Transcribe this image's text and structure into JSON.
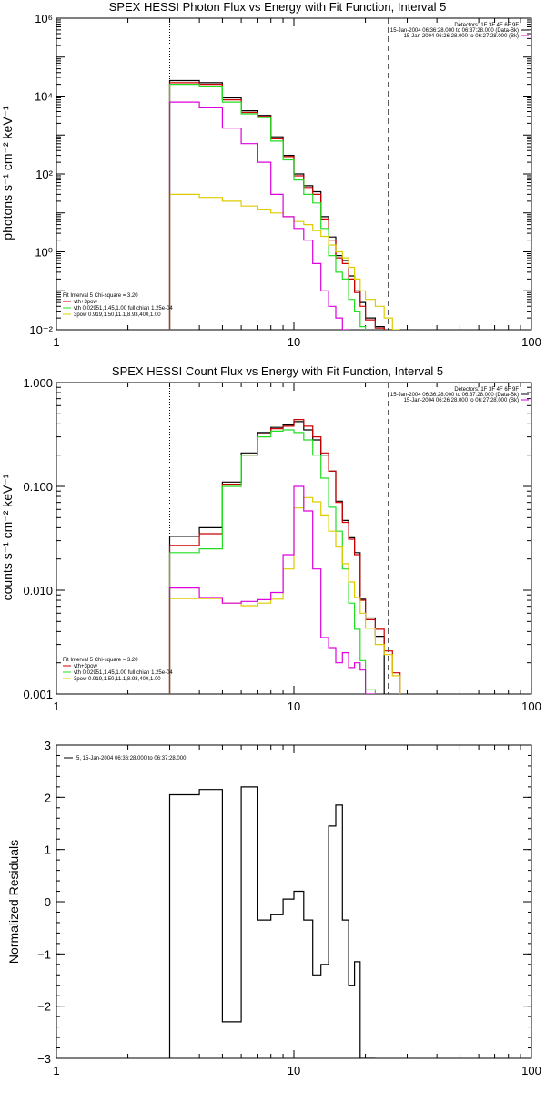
{
  "colors": {
    "black": "#000000",
    "red": "#cc0000",
    "green": "#22dd22",
    "magenta": "#dd00dd",
    "yellow": "#ddcc00"
  },
  "chart_data": [
    {
      "type": "line",
      "step": true,
      "title": "SPEX HESSI Photon Flux vs Energy with Fit Function, Interval 5",
      "xlabel": "",
      "ylabel": "photons s⁻¹ cm⁻² keV⁻¹",
      "xscale": "log",
      "yscale": "log",
      "xlim": [
        1,
        100
      ],
      "ylim": [
        0.01,
        1000000
      ],
      "xtick_labels": [
        "1",
        "10",
        "100"
      ],
      "ytick_labels": [
        "10⁻²",
        "10⁰",
        "10²",
        "10⁴",
        "10⁶"
      ],
      "yticks_exp": [
        -2,
        0,
        2,
        4,
        6
      ],
      "vlines": [
        {
          "x": 3,
          "style": "dotted"
        },
        {
          "x": 25,
          "style": "dashed"
        }
      ],
      "header": [
        "Detectors: 1F 3F 4F 6F 9F",
        "15-Jan-2004 06:36:28.000 to 06:37:28.000 (Data-Bk)",
        "15-Jan-2004 06:26:28.000 to 06:27:28.000 (Bk)"
      ],
      "fit_text": [
        "Fit Interval 5   Chi-square = 3.20",
        "vth+3pow",
        "vth 0.02951,1.45,1.00  full chian 1.25e-04",
        "3pow 0.919,1.50,11.1,8.93,400,1.00"
      ],
      "bin_edges": [
        3,
        4,
        5,
        6,
        7,
        8,
        9,
        10,
        11,
        12,
        13,
        14,
        15,
        16,
        17,
        18,
        19,
        20,
        22,
        24,
        26,
        28,
        30
      ],
      "series": [
        {
          "name": "data",
          "color": "black",
          "values": [
            25000,
            22000,
            9000,
            4200,
            3200,
            900,
            300,
            100,
            50,
            35,
            8,
            2.4,
            0.8,
            0.6,
            0.24,
            0.1,
            0.05,
            0.02,
            0.012,
            null,
            null,
            null
          ]
        },
        {
          "name": "vth+3pow",
          "color": "red",
          "values": [
            22000,
            20000,
            8000,
            3800,
            3000,
            800,
            280,
            90,
            45,
            30,
            7,
            2,
            0.7,
            0.5,
            0.2,
            0.09,
            0.04,
            0.018,
            0.011,
            null,
            null,
            null
          ]
        },
        {
          "name": "vth",
          "color": "green",
          "values": [
            20000,
            18000,
            7000,
            3500,
            2800,
            700,
            230,
            70,
            30,
            18,
            4,
            0.8,
            0.3,
            0.2,
            0.06,
            0.03,
            0.012,
            null,
            null,
            null,
            null,
            null
          ]
        },
        {
          "name": "3pow",
          "color": "yellow",
          "values": [
            30,
            25,
            20,
            15,
            12,
            10,
            8,
            6,
            5,
            3.5,
            2.5,
            1.5,
            1,
            0.7,
            0.4,
            0.2,
            0.1,
            0.06,
            0.04,
            0.02,
            0.01,
            null
          ]
        },
        {
          "name": "bk",
          "color": "magenta",
          "values": [
            7000,
            5000,
            1500,
            600,
            200,
            30,
            8,
            4,
            2,
            0.5,
            0.1,
            0.04,
            0.02,
            0.01,
            null,
            null,
            null,
            null,
            null,
            null,
            null,
            null
          ]
        }
      ]
    },
    {
      "type": "line",
      "step": true,
      "title": "SPEX HESSI Count Flux vs Energy with Fit Function, Interval 5",
      "xlabel": "",
      "ylabel": "counts s⁻¹ cm⁻² keV⁻¹",
      "xscale": "log",
      "yscale": "log",
      "xlim": [
        1,
        100
      ],
      "ylim": [
        0.001,
        1.0
      ],
      "xtick_labels": [
        "1",
        "10",
        "100"
      ],
      "ytick_labels": [
        "0.001",
        "0.010",
        "0.100",
        "1.000"
      ],
      "yticks": [
        0.001,
        0.01,
        0.1,
        1.0
      ],
      "vlines": [
        {
          "x": 3,
          "style": "dotted"
        },
        {
          "x": 25,
          "style": "dashed"
        }
      ],
      "header": [
        "Detectors: 1F 3F 4F 6F 9F",
        "15-Jan-2004 06:36:28.000 to 06:37:28.000 (Data-Bk)",
        "15-Jan-2004 06:26:28.000 to 06:27:28.000 (Bk)"
      ],
      "fit_text": [
        "Fit Interval 5   Chi-square = 3.20",
        "vth+3pow",
        "vth 0.02951,1.45,1.00  full chian 1.25e-04",
        "3pow 0.919,1.50,11.1,8.93,400,1.00"
      ],
      "bin_edges": [
        3,
        4,
        5,
        6,
        7,
        8,
        9,
        10,
        11,
        12,
        13,
        14,
        15,
        16,
        17,
        18,
        19,
        20,
        22,
        24,
        26,
        28,
        30
      ],
      "series": [
        {
          "name": "data",
          "color": "black",
          "values": [
            0.033,
            0.04,
            0.11,
            0.21,
            0.33,
            0.37,
            0.39,
            0.42,
            0.35,
            0.28,
            0.2,
            0.14,
            0.072,
            0.047,
            0.032,
            0.023,
            0.0082,
            0.0054,
            0.0036,
            null,
            null,
            null
          ]
        },
        {
          "name": "vth+3pow",
          "color": "red",
          "values": [
            0.027,
            0.035,
            0.105,
            0.2,
            0.32,
            0.36,
            0.38,
            0.44,
            0.38,
            0.3,
            0.21,
            0.14,
            0.07,
            0.045,
            0.031,
            0.022,
            0.008,
            0.0052,
            0.0042,
            0.0026,
            0.0016,
            null
          ]
        },
        {
          "name": "vth",
          "color": "green",
          "values": [
            0.023,
            0.025,
            0.1,
            0.2,
            0.3,
            0.34,
            0.35,
            0.33,
            0.28,
            0.2,
            0.12,
            0.063,
            0.037,
            0.016,
            0.0075,
            0.0042,
            0.0021,
            0.0011,
            null,
            null,
            null,
            null
          ]
        },
        {
          "name": "3pow",
          "color": "yellow",
          "values": [
            0.0083,
            0.0083,
            0.0075,
            0.0071,
            0.0075,
            0.0082,
            0.016,
            0.062,
            0.078,
            0.071,
            0.053,
            0.037,
            0.026,
            0.018,
            0.012,
            0.0085,
            0.006,
            0.0043,
            0.003,
            0.0024,
            0.0015,
            null
          ]
        },
        {
          "name": "bk",
          "color": "magenta",
          "values": [
            0.0105,
            0.0085,
            0.0075,
            0.0078,
            0.0081,
            0.0095,
            0.022,
            0.1,
            0.058,
            0.016,
            0.0035,
            0.0028,
            0.002,
            0.0025,
            0.0018,
            0.002,
            0.0017,
            0.001,
            null,
            null,
            null,
            null
          ]
        }
      ]
    },
    {
      "type": "line",
      "step": true,
      "title": "",
      "xlabel": "",
      "ylabel": "Normalized Residuals",
      "xscale": "log",
      "yscale": "linear",
      "xlim": [
        1,
        100
      ],
      "ylim": [
        -3,
        3
      ],
      "xtick_labels": [
        "1",
        "10",
        "100"
      ],
      "ytick_labels": [
        "−3",
        "−2",
        "−1",
        "0",
        "1",
        "2",
        "3"
      ],
      "yticks": [
        -3,
        -2,
        -1,
        0,
        1,
        2,
        3
      ],
      "legend": "5, 15-Jan-2004 06:36:28.000 to 06:37:28.000",
      "bin_edges": [
        3,
        4,
        5,
        6,
        7,
        8,
        9,
        10,
        11,
        12,
        13,
        14,
        15,
        16,
        17,
        18,
        19,
        20,
        22,
        24,
        26
      ],
      "series": [
        {
          "name": "5, 15-Jan-2004 06:36:28.000 to 06:37:28.000",
          "color": "black",
          "values": [
            2.05,
            2.15,
            -2.3,
            2.2,
            -0.35,
            -0.25,
            0.05,
            0.2,
            -0.35,
            -1.4,
            -1.2,
            1.45,
            1.85,
            -0.35,
            -1.6,
            -1.15,
            -3.0,
            -3.0,
            null,
            null
          ]
        }
      ]
    }
  ]
}
